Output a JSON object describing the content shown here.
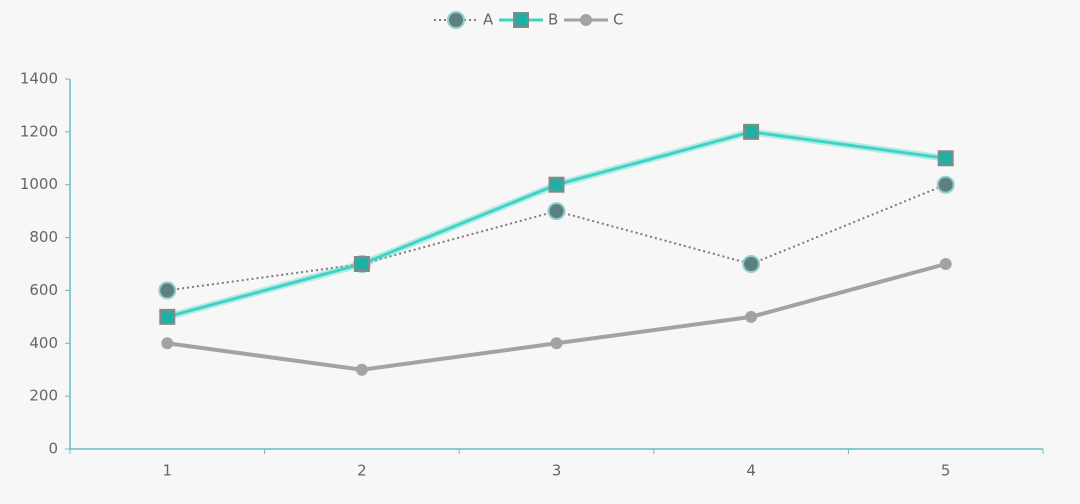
{
  "chart_data": {
    "type": "line",
    "categories": [
      "1",
      "2",
      "3",
      "4",
      "5"
    ],
    "series": [
      {
        "name": "A",
        "color": "#7a7a7a",
        "marker_color": "#5e7f80",
        "marker": "circle",
        "dash": "dotted",
        "values": [
          600,
          700,
          900,
          700,
          1000
        ]
      },
      {
        "name": "B",
        "color": "#3fd3c6",
        "marker_color": "#1fb0a3",
        "marker": "square",
        "dash": "solid",
        "values": [
          500,
          700,
          1000,
          1200,
          1100
        ]
      },
      {
        "name": "C",
        "color": "#a3a3a3",
        "marker_color": "#a3a3a3",
        "marker": "circle",
        "dash": "solid",
        "values": [
          400,
          300,
          400,
          500,
          700
        ]
      }
    ],
    "ylim": [
      0,
      1400
    ],
    "yticks": [
      0,
      200,
      400,
      600,
      800,
      1000,
      1200,
      1400
    ],
    "legend": "top",
    "grid": false
  }
}
